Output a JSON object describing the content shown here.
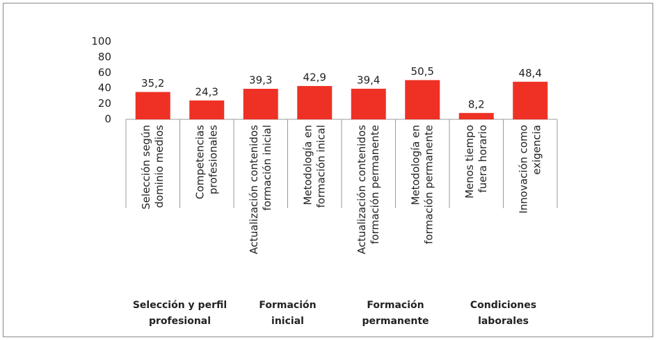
{
  "chart_data": {
    "type": "bar",
    "categories": [
      [
        "Selección según",
        "dominio medios"
      ],
      [
        "Competencias",
        "profesionales"
      ],
      [
        "Actualización contenidos",
        "formación inicial"
      ],
      [
        "Metodología en",
        "formación inical"
      ],
      [
        "Actualización contenidos",
        "formación permanente"
      ],
      [
        "Metodología en",
        "formación permanente"
      ],
      [
        "Menos tiempo",
        "fuera horario"
      ],
      [
        "Innovación como",
        "exigencia"
      ]
    ],
    "values": [
      35.2,
      24.3,
      39.3,
      42.9,
      39.4,
      50.5,
      8.2,
      48.4
    ],
    "value_labels": [
      "35,2",
      "24,3",
      "39,3",
      "42,9",
      "39,4",
      "50,5",
      "8,2",
      "48,4"
    ],
    "color": "#ee3124",
    "groups": [
      [
        "Selección y perfil",
        "profesional"
      ],
      [
        "Formación",
        "inicial"
      ],
      [
        "Formación",
        "permanente"
      ],
      [
        "Condiciones",
        "laborales"
      ]
    ],
    "ylim": [
      0,
      100
    ],
    "yticks": [
      0,
      20,
      40,
      60,
      80,
      100
    ],
    "grid": false
  }
}
